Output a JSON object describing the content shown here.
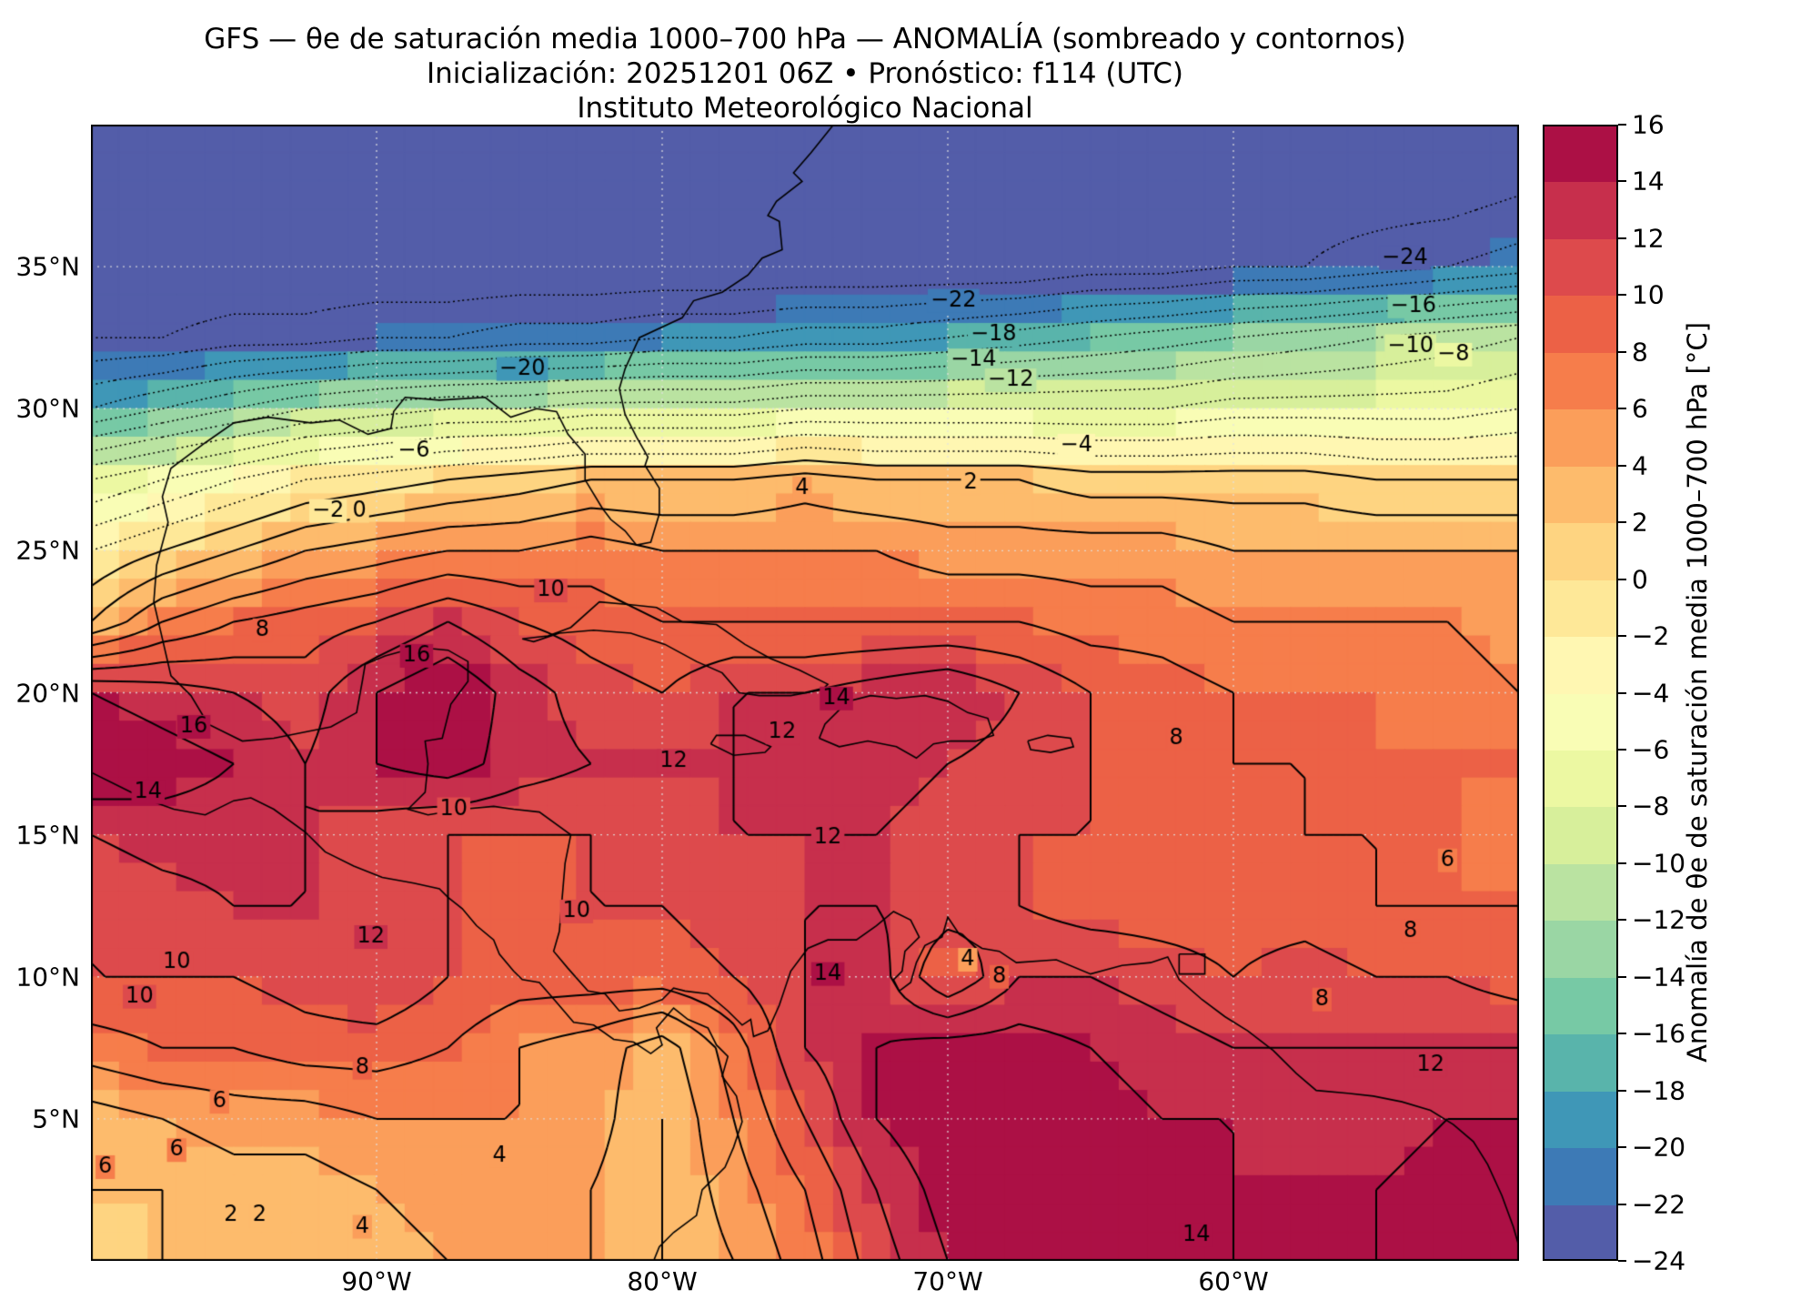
{
  "title": {
    "line1": "GFS — θe de saturación media 1000–700 hPa — ANOMALÍA (sombreado y contornos)",
    "line2": "Inicialización: 20251201 06Z   •   Pronóstico: f114 (UTC)",
    "line3": "Instituto Meteorológico Nacional"
  },
  "axes": {
    "x_ticks": [
      "90°W",
      "80°W",
      "70°W",
      "60°W"
    ],
    "x_tick_lons": [
      -90,
      -80,
      -70,
      -60
    ],
    "y_ticks": [
      "35°N",
      "30°N",
      "25°N",
      "20°N",
      "15°N",
      "10°N",
      "5°N"
    ],
    "y_tick_lats": [
      35,
      30,
      25,
      20,
      15,
      10,
      5
    ]
  },
  "colorbar": {
    "label": "Anomalía de θe de saturación media 1000–700 hPa [°C]",
    "min": -24,
    "max": 16,
    "step": 2,
    "tick_values": [
      16,
      14,
      12,
      10,
      8,
      6,
      4,
      2,
      0,
      -2,
      -4,
      -6,
      -8,
      -10,
      -12,
      -14,
      -16,
      -18,
      -20,
      -22,
      -24
    ],
    "tick_labels": [
      "16",
      "14",
      "12",
      "10",
      "8",
      "6",
      "4",
      "2",
      "0",
      "−2",
      "−4",
      "−6",
      "−8",
      "−10",
      "−12",
      "−14",
      "−16",
      "−18",
      "−20",
      "−22",
      "−24"
    ],
    "anchors": [
      "#5e4fa2",
      "#3288bd",
      "#66c2a5",
      "#abdda4",
      "#e6f598",
      "#ffffbf",
      "#fee08b",
      "#fdae61",
      "#f46d43",
      "#d53e4f",
      "#9e0142"
    ]
  },
  "chart_data": {
    "type": "heatmap",
    "subtype": "filled-contour-map",
    "title": "GFS — θe de saturación media 1000–700 hPa — ANOMALÍA (sombreado y contornos)",
    "units": "°C",
    "lon_range": [
      -100,
      -50
    ],
    "lat_range": [
      0,
      40
    ],
    "contour_level_min": -24,
    "contour_level_max": 16,
    "contour_level_step": 2,
    "negative_contour_style": "dotted",
    "positive_contour_style": "solid",
    "lons": [
      -100,
      -97.5,
      -95,
      -92.5,
      -90,
      -87.5,
      -85,
      -82.5,
      -80,
      -77.5,
      -75,
      -72.5,
      -70,
      -67.5,
      -65,
      -62.5,
      -60,
      -57.5,
      -55,
      -52.5,
      -50
    ],
    "lats": [
      40,
      37.5,
      35,
      32.5,
      30,
      27.5,
      25,
      22.5,
      20,
      17.5,
      15,
      12.5,
      10,
      7.5,
      5,
      2.5,
      0
    ],
    "values": [
      [
        -26,
        -26,
        -26,
        -26,
        -26,
        -26,
        -26,
        -26,
        -26,
        -26,
        -26,
        -26,
        -26,
        -26,
        -26,
        -26,
        -26,
        -26,
        -26,
        -26,
        -26
      ],
      [
        -26,
        -26,
        -26,
        -26,
        -26,
        -26,
        -26,
        -26,
        -26,
        -26,
        -26,
        -26,
        -26,
        -26,
        -26,
        -26,
        -26,
        -25,
        -25,
        -25,
        -24
      ],
      [
        -26,
        -26,
        -26,
        -26,
        -26,
        -26,
        -26,
        -26,
        -26,
        -26,
        -26,
        -26,
        -26,
        -26,
        -25,
        -25,
        -24,
        -24,
        -23,
        -22,
        -21
      ],
      [
        -24,
        -24,
        -23,
        -23,
        -22,
        -22,
        -21,
        -21,
        -20,
        -20,
        -19,
        -19,
        -18,
        -17,
        -16,
        -15,
        -14,
        -13,
        -12,
        -11,
        -10
      ],
      [
        -18,
        -16,
        -14,
        -12,
        -11,
        -10,
        -10,
        -9,
        -9,
        -9,
        -8,
        -8,
        -8,
        -8,
        -8,
        -8,
        -7,
        -7,
        -7,
        -7,
        -6
      ],
      [
        -8,
        -6,
        -4,
        -2,
        -1,
        0,
        1,
        2,
        2,
        2,
        3,
        2,
        2,
        2,
        1,
        1,
        1,
        1,
        0,
        0,
        0
      ],
      [
        -2,
        0,
        2,
        4,
        5,
        6,
        6,
        7,
        6,
        6,
        6,
        6,
        5,
        5,
        5,
        5,
        4,
        4,
        4,
        4,
        4
      ],
      [
        2,
        6,
        8,
        9,
        10,
        12,
        10,
        9,
        8,
        8,
        8,
        8,
        8,
        8,
        7,
        7,
        6,
        6,
        6,
        6,
        5
      ],
      [
        14,
        13,
        12,
        11,
        14,
        16,
        13,
        11,
        10,
        12,
        12,
        13,
        14,
        12,
        10,
        9,
        8,
        8,
        8,
        7,
        6
      ],
      [
        16,
        15,
        14,
        12,
        14,
        15,
        13,
        12,
        12,
        12,
        13,
        13,
        12,
        11,
        10,
        9,
        8,
        8,
        8,
        8,
        8
      ],
      [
        12,
        13,
        13,
        12,
        11,
        10,
        10,
        10,
        11,
        12,
        12,
        12,
        11,
        10,
        10,
        9,
        9,
        8,
        8,
        8,
        7
      ],
      [
        10,
        11,
        12,
        12,
        11,
        10,
        9,
        10,
        10,
        11,
        12,
        12,
        11,
        10,
        9,
        9,
        9,
        9,
        8,
        8,
        8
      ],
      [
        10,
        10,
        10,
        11,
        12,
        10,
        9,
        9,
        9,
        10,
        12,
        13,
        8,
        12,
        12,
        11,
        10,
        11,
        10,
        10,
        9
      ],
      [
        7,
        8,
        8,
        9,
        9,
        8,
        6,
        5,
        3,
        7,
        12,
        14,
        15,
        15,
        14,
        13,
        12,
        12,
        12,
        12,
        12
      ],
      [
        3,
        4,
        5,
        5,
        6,
        6,
        6,
        5,
        2,
        6,
        10,
        14,
        16,
        16,
        15,
        14,
        14,
        13,
        13,
        14,
        14
      ],
      [
        2,
        2,
        3,
        3,
        4,
        5,
        5,
        4,
        2,
        5,
        8,
        12,
        15,
        16,
        16,
        15,
        14,
        14,
        14,
        15,
        16
      ],
      [
        1,
        2,
        2,
        3,
        3,
        4,
        4,
        4,
        2,
        4,
        7,
        11,
        14,
        16,
        16,
        16,
        14,
        14,
        14,
        15,
        16
      ]
    ],
    "contour_labels": [
      {
        "t": "−24",
        "lon": -54.0,
        "lat": 35.3
      },
      {
        "t": "−22",
        "lon": -69.8,
        "lat": 33.8
      },
      {
        "t": "−18",
        "lon": -68.4,
        "lat": 32.6
      },
      {
        "t": "−14",
        "lon": -69.1,
        "lat": 31.7
      },
      {
        "t": "−12",
        "lon": -67.8,
        "lat": 31.0
      },
      {
        "t": "−20",
        "lon": -84.9,
        "lat": 31.4
      },
      {
        "t": "−16",
        "lon": -53.7,
        "lat": 33.6
      },
      {
        "t": "−10",
        "lon": -53.8,
        "lat": 32.2
      },
      {
        "t": "−8",
        "lon": -52.3,
        "lat": 31.9
      },
      {
        "t": "−4",
        "lon": -65.5,
        "lat": 28.7
      },
      {
        "t": "−6",
        "lon": -88.7,
        "lat": 28.5
      },
      {
        "t": "−2",
        "lon": -91.7,
        "lat": 26.4
      },
      {
        "t": "0",
        "lon": -90.6,
        "lat": 26.4
      },
      {
        "t": "2",
        "lon": -69.2,
        "lat": 27.4
      },
      {
        "t": "4",
        "lon": -75.1,
        "lat": 27.2
      },
      {
        "t": "10",
        "lon": -83.9,
        "lat": 23.6
      },
      {
        "t": "8",
        "lon": -94.0,
        "lat": 22.2
      },
      {
        "t": "16",
        "lon": -88.6,
        "lat": 21.3
      },
      {
        "t": "16",
        "lon": -96.4,
        "lat": 18.8
      },
      {
        "t": "14",
        "lon": -98.0,
        "lat": 16.5
      },
      {
        "t": "14",
        "lon": -73.9,
        "lat": 19.8
      },
      {
        "t": "12",
        "lon": -75.8,
        "lat": 18.6
      },
      {
        "t": "12",
        "lon": -79.6,
        "lat": 17.6
      },
      {
        "t": "8",
        "lon": -62.0,
        "lat": 18.4
      },
      {
        "t": "10",
        "lon": -87.3,
        "lat": 15.9
      },
      {
        "t": "12",
        "lon": -74.2,
        "lat": 14.9
      },
      {
        "t": "6",
        "lon": -52.5,
        "lat": 14.1
      },
      {
        "t": "8",
        "lon": -53.8,
        "lat": 11.6
      },
      {
        "t": "10",
        "lon": -83.0,
        "lat": 12.3
      },
      {
        "t": "12",
        "lon": -90.2,
        "lat": 11.4
      },
      {
        "t": "10",
        "lon": -97.0,
        "lat": 10.5
      },
      {
        "t": "10",
        "lon": -98.3,
        "lat": 9.3
      },
      {
        "t": "14",
        "lon": -74.2,
        "lat": 10.1
      },
      {
        "t": "4",
        "lon": -69.3,
        "lat": 10.6
      },
      {
        "t": "8",
        "lon": -68.2,
        "lat": 10.0
      },
      {
        "t": "8",
        "lon": -56.9,
        "lat": 9.2
      },
      {
        "t": "8",
        "lon": -90.5,
        "lat": 6.8
      },
      {
        "t": "6",
        "lon": -95.5,
        "lat": 5.6
      },
      {
        "t": "6",
        "lon": -99.5,
        "lat": 3.3
      },
      {
        "t": "6",
        "lon": -97.0,
        "lat": 3.9
      },
      {
        "t": "2",
        "lon": -95.1,
        "lat": 1.6
      },
      {
        "t": "2",
        "lon": -94.1,
        "lat": 1.6
      },
      {
        "t": "4",
        "lon": -90.5,
        "lat": 1.2
      },
      {
        "t": "4",
        "lon": -85.7,
        "lat": 3.7
      },
      {
        "t": "12",
        "lon": -53.1,
        "lat": 6.9
      },
      {
        "t": "14",
        "lon": -61.3,
        "lat": 0.9
      }
    ]
  }
}
